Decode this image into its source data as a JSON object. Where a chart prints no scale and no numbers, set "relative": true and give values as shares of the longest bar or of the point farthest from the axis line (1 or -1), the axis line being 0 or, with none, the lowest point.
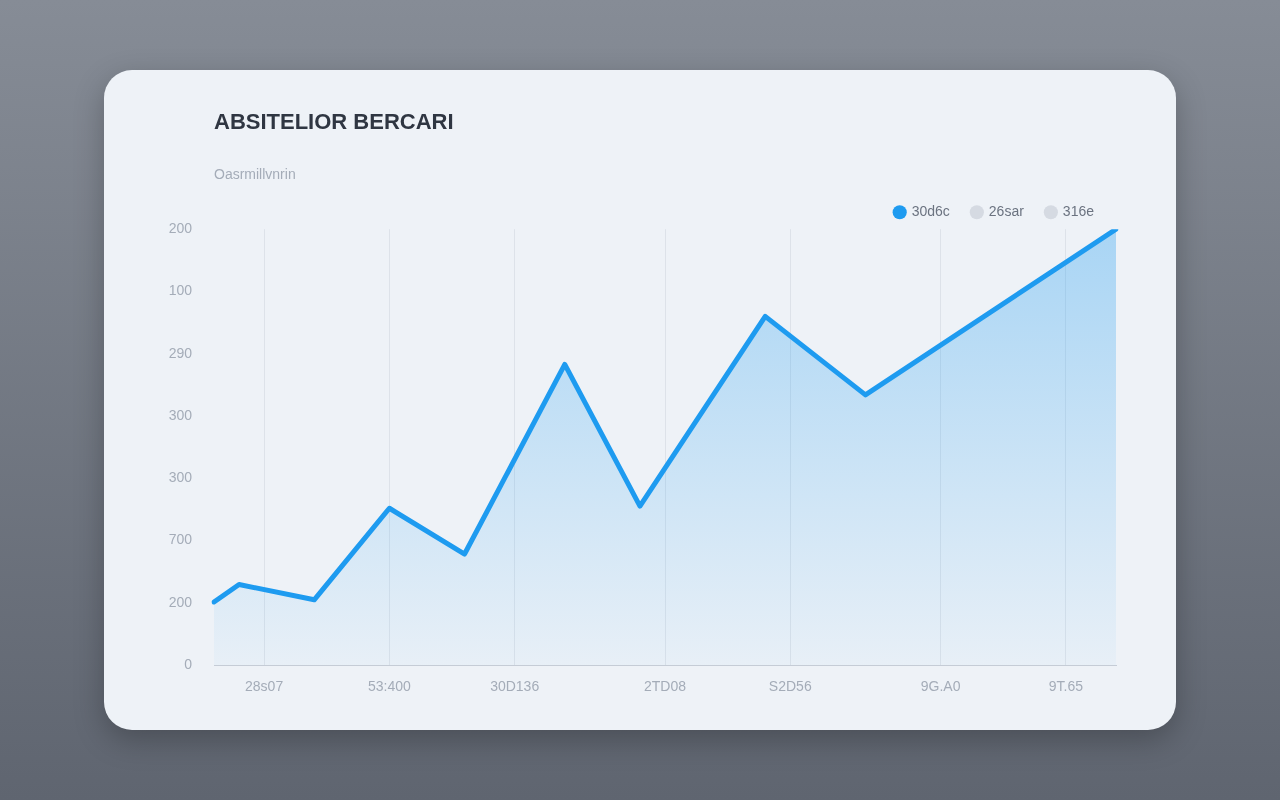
{
  "chart_data": {
    "type": "area",
    "title": "ABSITELIOR BERCARI",
    "subtitle": "Oasrmillvnrin",
    "relative": true,
    "categories": [
      null,
      null,
      "28s07",
      null,
      null,
      null,
      null,
      "53:400",
      null,
      null,
      null,
      null,
      "30D136",
      null,
      null,
      null,
      null,
      null,
      "2TD08",
      null,
      null,
      null,
      null,
      "S2D56",
      null,
      null,
      null,
      null,
      null,
      "9G.A0",
      null,
      null,
      null,
      null,
      "9T.65",
      null,
      null
    ],
    "series": [
      {
        "name": "30d6c",
        "color": "#1e9bf0",
        "values": [
          0.145,
          0.185,
          null,
          null,
          0.15,
          null,
          null,
          0.36,
          null,
          null,
          0.255,
          null,
          null,
          null,
          0.69,
          null,
          null,
          0.365,
          null,
          null,
          null,
          null,
          0.8,
          null,
          null,
          null,
          0.62,
          null,
          null,
          null,
          null,
          null,
          null,
          null,
          null,
          null,
          1
        ]
      },
      {
        "name": "26sar",
        "color": "#d5dae2",
        "values": [
          null,
          null,
          null,
          null,
          null,
          null,
          null,
          null,
          null,
          null,
          null,
          null,
          null,
          null,
          null,
          null,
          null,
          null,
          null,
          null,
          null,
          null,
          null,
          null,
          null,
          null,
          null,
          null,
          null,
          null,
          null,
          null,
          null,
          null,
          null,
          null,
          null
        ]
      },
      {
        "name": "316e",
        "color": "#d5dae2",
        "values": [
          null,
          null,
          null,
          null,
          null,
          null,
          null,
          null,
          null,
          null,
          null,
          null,
          null,
          null,
          null,
          null,
          null,
          null,
          null,
          null,
          null,
          null,
          null,
          null,
          null,
          null,
          null,
          null,
          null,
          null,
          null,
          null,
          null,
          null,
          null,
          null,
          null
        ]
      }
    ],
    "annotations": [
      "200",
      "100",
      "290",
      "300",
      "300",
      "700",
      "200",
      "0"
    ],
    "grid": "x",
    "legend": "top right",
    "marker": "none",
    "line_style": "solid"
  }
}
